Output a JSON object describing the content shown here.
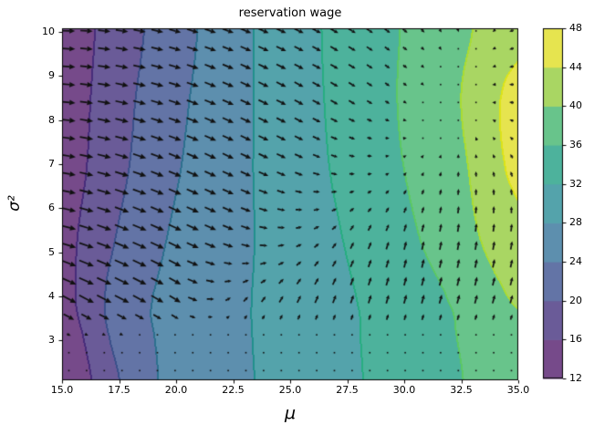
{
  "chart_data": {
    "type": "heatmap",
    "subtype": "filled_contour_with_quiver",
    "title": "reservation wage",
    "xlabel": "μ",
    "ylabel": "σ²",
    "x_range": [
      15.0,
      35.0
    ],
    "y_range": [
      2.1,
      10.1
    ],
    "grid": false,
    "legend_position": "none",
    "levels": [
      12,
      16,
      20,
      24,
      28,
      32,
      36,
      40,
      44,
      48
    ],
    "band_colors": [
      "#764a8a",
      "#6a5b98",
      "#6374a6",
      "#5d8fae",
      "#54a3ab",
      "#4db29c",
      "#68c48b",
      "#a9d663",
      "#e6e44f"
    ],
    "contour_line_colors": [
      "#472d7b",
      "#3b518b",
      "#2d708e",
      "#21908c",
      "#27ad81",
      "#5cc863",
      "#aadc32",
      "#dde318"
    ],
    "xticks": {
      "values": [
        15,
        17.5,
        20,
        22.5,
        25,
        27.5,
        30,
        32.5,
        35
      ],
      "labels": [
        "15.0",
        "17.5",
        "20.0",
        "22.5",
        "25.0",
        "27.5",
        "30.0",
        "32.5",
        "35.0"
      ]
    },
    "yticks": {
      "values": [
        3,
        4,
        5,
        6,
        7,
        8,
        9,
        10
      ],
      "labels": [
        "3",
        "4",
        "5",
        "6",
        "7",
        "8",
        "9",
        "10"
      ]
    },
    "colorbar": {
      "min": 12,
      "max": 48,
      "tick_values": [
        12,
        16,
        20,
        24,
        28,
        32,
        36,
        40,
        44,
        48
      ],
      "tick_labels": [
        "12",
        "16",
        "20",
        "24",
        "28",
        "32",
        "36",
        "40",
        "44",
        "48"
      ]
    },
    "surface": {
      "mu": [
        15,
        17.5,
        20,
        22.5,
        25,
        27.5,
        30,
        32.5,
        35
      ],
      "sigma2": [
        2.1,
        3.1,
        3.8,
        5.3,
        6.9,
        8.5,
        10.1
      ],
      "reservation_wage": [
        [
          12.5,
          20.0,
          25.4,
          27.2,
          29.4,
          31.4,
          33.6,
          35.9,
          38.2
        ],
        [
          13.6,
          21.3,
          25.2,
          27.3,
          29.4,
          31.5,
          33.7,
          36.2,
          39.2
        ],
        [
          14.7,
          21.8,
          25.2,
          27.3,
          29.5,
          31.6,
          33.8,
          36.6,
          40.2
        ],
        [
          14.9,
          20.4,
          24.6,
          27.0,
          29.7,
          32.2,
          35.1,
          38.5,
          42.6
        ],
        [
          14.2,
          19.2,
          23.7,
          26.9,
          30.0,
          32.9,
          36.0,
          39.3,
          44.9
        ],
        [
          13.9,
          18.7,
          23.1,
          26.7,
          30.2,
          33.2,
          36.4,
          40.0,
          45.3
        ],
        [
          13.7,
          18.1,
          22.4,
          26.6,
          30.3,
          33.3,
          36.2,
          39.2,
          42.8
        ]
      ]
    },
    "quiver": {
      "mu": [
        15,
        17.5,
        20,
        22.5,
        25,
        27.5,
        30,
        32.5,
        35
      ],
      "sigma2": [
        2.1,
        3.1,
        3.8,
        5.3,
        6.9,
        8.5,
        10.1
      ],
      "u": [
        [
          0.03,
          0.03,
          0.03,
          0.03,
          0.03,
          0.03,
          0.03,
          0.03,
          0.03
        ],
        [
          0.25,
          0.15,
          0.05,
          0.04,
          0.04,
          0.04,
          0.04,
          0.04,
          0.04
        ],
        [
          1.1,
          1.05,
          0.8,
          0.3,
          0.25,
          0.2,
          0.18,
          0.18,
          0.18
        ],
        [
          1.05,
          1.05,
          0.95,
          0.75,
          0.45,
          0.25,
          0.15,
          0.1,
          0.1
        ],
        [
          1.0,
          1.0,
          0.9,
          0.8,
          0.62,
          0.42,
          0.2,
          0.0,
          -0.15
        ],
        [
          0.95,
          0.95,
          0.9,
          0.8,
          0.68,
          0.5,
          0.25,
          -0.05,
          -0.38
        ],
        [
          0.9,
          0.9,
          0.85,
          0.8,
          0.7,
          0.55,
          0.35,
          0.05,
          -0.35
        ]
      ],
      "v": [
        [
          0.03,
          0.03,
          0.03,
          0.03,
          0.03,
          0.03,
          0.03,
          0.03,
          0.03
        ],
        [
          -0.12,
          -0.08,
          0.02,
          0.03,
          0.03,
          0.03,
          0.03,
          0.03,
          0.03
        ],
        [
          -0.6,
          -0.55,
          -0.5,
          0.35,
          0.55,
          0.62,
          0.65,
          0.65,
          0.6
        ],
        [
          -0.28,
          -0.42,
          -0.45,
          -0.3,
          0.1,
          0.45,
          0.6,
          0.65,
          0.6
        ],
        [
          -0.15,
          -0.3,
          -0.38,
          -0.38,
          -0.28,
          -0.08,
          0.18,
          0.35,
          0.35
        ],
        [
          -0.08,
          -0.2,
          -0.3,
          -0.36,
          -0.36,
          -0.3,
          -0.18,
          -0.02,
          0.02
        ],
        [
          0.0,
          -0.12,
          -0.22,
          -0.3,
          -0.33,
          -0.32,
          -0.28,
          -0.2,
          -0.12
        ]
      ],
      "lattice": {
        "nx": 26,
        "ny": 20,
        "mu_min": 15.3,
        "mu_max": 34.7,
        "s_min": 2.32,
        "s_max": 10.02
      },
      "arrow_color": "#111111",
      "arrow_scale": 15
    }
  }
}
